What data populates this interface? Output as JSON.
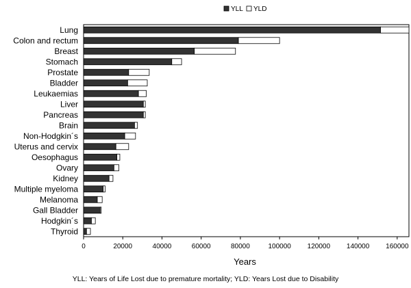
{
  "chart_data": {
    "type": "bar",
    "orientation": "horizontal",
    "stacked": true,
    "categories": [
      "Lung",
      "Colon and rectum",
      "Breast",
      "Stomach",
      "Prostate",
      "Bladder",
      "Leukaemias",
      "Liver",
      "Pancreas",
      "Brain",
      "Non-Hodgkin´s",
      "Uterus and cervix",
      "Oesophagus",
      "Ovary",
      "Kidney",
      "Multiple myeloma",
      "Melanoma",
      "Gall Bladder",
      "Hodgkin´s",
      "Thyroid"
    ],
    "series": [
      {
        "name": "YLL",
        "color": "#333333",
        "values": [
          151500,
          79000,
          56500,
          45000,
          23000,
          22500,
          28000,
          30500,
          30500,
          26000,
          21000,
          16500,
          17000,
          15500,
          13000,
          10000,
          7000,
          8500,
          4000,
          1500
        ]
      },
      {
        "name": "YLD",
        "color": "#ffffff",
        "values": [
          14500,
          21000,
          21000,
          5000,
          10500,
          10000,
          4000,
          1000,
          1000,
          1500,
          5500,
          6500,
          1500,
          2500,
          2000,
          1000,
          2500,
          500,
          2000,
          2000
        ]
      }
    ],
    "xlabel": "Years",
    "ylabel": "",
    "xlim": [
      0,
      166000
    ],
    "xticks": [
      "0",
      "20000",
      "40000",
      "60000",
      "80000",
      "100000",
      "120000",
      "140000",
      "160000"
    ],
    "xtick_values": [
      0,
      20000,
      40000,
      60000,
      80000,
      100000,
      120000,
      140000,
      160000
    ],
    "grid": false,
    "legend_position": "top-right"
  },
  "footnote": "YLL: Years of Life Lost due to premature mortality; YLD: Years Lost due to Disability"
}
